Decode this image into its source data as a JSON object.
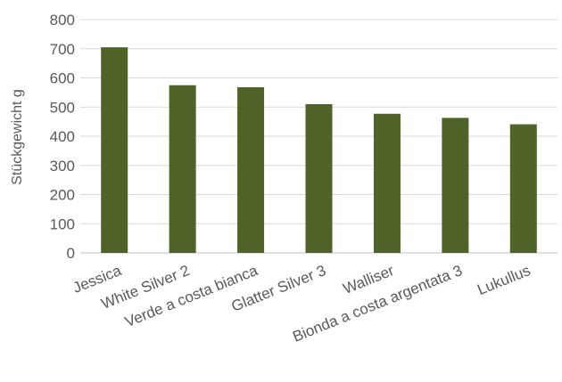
{
  "chart_data": {
    "type": "bar",
    "title": "",
    "xlabel": "",
    "ylabel": "Stückgewicht g",
    "ylim": [
      0,
      800
    ],
    "yticks": [
      0,
      100,
      200,
      300,
      400,
      500,
      600,
      700,
      800
    ],
    "grid": true,
    "legend": "none",
    "bar_color": "#4f6228",
    "categories": [
      "Jessica",
      "White Silver 2",
      "Verde a costa bianca",
      "Glatter Silver 3",
      "Walliser",
      "Bionda a costa argentata 3",
      "Lukullus"
    ],
    "values": [
      705,
      575,
      568,
      510,
      477,
      463,
      441
    ]
  }
}
